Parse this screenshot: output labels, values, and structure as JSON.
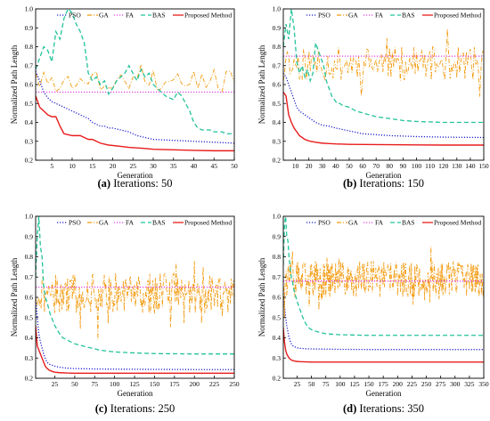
{
  "colors": {
    "PSO": "#1f1fd0",
    "GA": "#f39c12",
    "FA": "#e040e0",
    "BAS": "#22c39a",
    "Proposed Method": "#e81c1c"
  },
  "chart_data": [
    {
      "id": "a",
      "type": "line",
      "caption_letter": "(a)",
      "caption_text": " Iterations: 50",
      "xlabel": "Generation",
      "ylabel": "Normalized Path Length",
      "xlim": [
        1,
        50
      ],
      "ylim": [
        0.2,
        1.0
      ],
      "xticks": [
        5,
        10,
        15,
        20,
        25,
        30,
        35,
        40,
        45,
        50
      ],
      "yticks": [
        0.2,
        0.3,
        0.4,
        0.5,
        0.6,
        0.7,
        0.8,
        0.9,
        1.0
      ],
      "ytick_labels": [
        "0.2",
        "0.3",
        "0.4",
        "0.5",
        "0.6",
        "0.7",
        "0.8",
        "0.9",
        "1.0"
      ],
      "legend": [
        "PSO",
        "GA",
        "FA",
        "BAS",
        "Proposed Method"
      ],
      "series": [
        {
          "name": "PSO",
          "style": "dotted",
          "x": [
            1,
            2,
            3,
            4,
            5,
            6,
            7,
            8,
            9,
            10,
            11,
            12,
            13,
            14,
            15,
            16,
            17,
            18,
            19,
            20,
            22,
            24,
            26,
            28,
            30,
            35,
            40,
            45,
            50
          ],
          "y": [
            0.67,
            0.62,
            0.56,
            0.53,
            0.51,
            0.5,
            0.49,
            0.48,
            0.47,
            0.46,
            0.45,
            0.44,
            0.43,
            0.42,
            0.4,
            0.39,
            0.38,
            0.38,
            0.37,
            0.37,
            0.36,
            0.35,
            0.33,
            0.32,
            0.31,
            0.305,
            0.3,
            0.295,
            0.29
          ]
        },
        {
          "name": "GA",
          "style": "dashdot",
          "noise": {
            "base": 0.62,
            "amp": 0.06,
            "seed": 3,
            "start": 0.66
          }
        },
        {
          "name": "FA",
          "style": "dotted",
          "x": [
            1,
            50
          ],
          "y": [
            0.56,
            0.56
          ]
        },
        {
          "name": "BAS",
          "style": "dashed",
          "x": [
            1,
            2,
            3,
            4,
            5,
            6,
            7,
            8,
            9,
            10,
            11,
            12,
            13,
            14,
            15,
            16,
            17,
            18,
            19,
            20,
            21,
            22,
            23,
            24,
            25,
            26,
            27,
            28,
            29,
            30,
            31,
            32,
            33,
            34,
            35,
            36,
            37,
            38,
            39,
            40,
            41,
            42,
            43,
            44,
            45,
            46,
            47,
            48,
            49,
            50
          ],
          "y": [
            0.68,
            0.74,
            0.8,
            0.78,
            0.72,
            0.88,
            0.84,
            0.95,
            1.0,
            0.98,
            0.92,
            0.88,
            0.82,
            0.66,
            0.62,
            0.64,
            0.6,
            0.62,
            0.55,
            0.58,
            0.62,
            0.64,
            0.66,
            0.7,
            0.66,
            0.62,
            0.68,
            0.64,
            0.66,
            0.6,
            0.58,
            0.56,
            0.54,
            0.53,
            0.52,
            0.56,
            0.54,
            0.5,
            0.46,
            0.4,
            0.37,
            0.36,
            0.36,
            0.36,
            0.35,
            0.35,
            0.35,
            0.34,
            0.34,
            0.34
          ]
        },
        {
          "name": "Proposed Method",
          "style": "solid",
          "x": [
            1,
            2,
            3,
            4,
            5,
            6,
            7,
            8,
            9,
            10,
            11,
            12,
            13,
            14,
            15,
            16,
            17,
            18,
            19,
            20,
            22,
            24,
            26,
            28,
            30,
            35,
            40,
            45,
            50
          ],
          "y": [
            0.54,
            0.48,
            0.46,
            0.44,
            0.43,
            0.43,
            0.38,
            0.34,
            0.335,
            0.33,
            0.33,
            0.33,
            0.32,
            0.31,
            0.31,
            0.3,
            0.29,
            0.285,
            0.28,
            0.278,
            0.273,
            0.268,
            0.265,
            0.262,
            0.258,
            0.255,
            0.252,
            0.25,
            0.25
          ]
        }
      ]
    },
    {
      "id": "b",
      "type": "line",
      "caption_letter": "(b)",
      "caption_text": " Iterations: 150",
      "xlabel": "Generation",
      "ylabel": "Normalized Path Length",
      "xlim": [
        1,
        150
      ],
      "ylim": [
        0.2,
        1.0
      ],
      "xticks": [
        10,
        20,
        30,
        40,
        50,
        60,
        70,
        80,
        90,
        100,
        110,
        120,
        130,
        140,
        150
      ],
      "yticks": [
        0.2,
        0.3,
        0.4,
        0.5,
        0.6,
        0.7,
        0.8,
        0.9,
        1.0
      ],
      "ytick_labels": [
        "0.2",
        "0.3",
        "0.4",
        "0.5",
        "0.6",
        "0.7",
        "0.8",
        "0.9",
        "1.0"
      ],
      "legend": [
        "PSO",
        "GA",
        "FA",
        "BAS",
        "Proposed Method"
      ],
      "series": [
        {
          "name": "PSO",
          "style": "dotted",
          "x": [
            1,
            3,
            5,
            7,
            9,
            11,
            13,
            15,
            17,
            19,
            21,
            25,
            30,
            35,
            40,
            50,
            60,
            70,
            80,
            100,
            120,
            150
          ],
          "y": [
            0.66,
            0.64,
            0.6,
            0.56,
            0.52,
            0.48,
            0.46,
            0.45,
            0.44,
            0.43,
            0.42,
            0.4,
            0.385,
            0.38,
            0.37,
            0.355,
            0.34,
            0.335,
            0.33,
            0.325,
            0.322,
            0.32
          ]
        },
        {
          "name": "GA",
          "style": "dashdot",
          "noise": {
            "base": 0.71,
            "amp": 0.09,
            "seed": 11,
            "start": 0.62
          }
        },
        {
          "name": "FA",
          "style": "dotted",
          "x": [
            1,
            150
          ],
          "y": [
            0.75,
            0.75
          ]
        },
        {
          "name": "BAS",
          "style": "dashed",
          "x": [
            1,
            3,
            5,
            7,
            9,
            11,
            13,
            15,
            17,
            19,
            21,
            23,
            25,
            27,
            29,
            31,
            33,
            35,
            37,
            39,
            41,
            43,
            45,
            50,
            55,
            60,
            70,
            80,
            90,
            100,
            120,
            150
          ],
          "y": [
            0.8,
            0.92,
            0.84,
            1.0,
            0.9,
            0.72,
            0.66,
            0.7,
            0.64,
            0.68,
            0.62,
            0.66,
            0.82,
            0.78,
            0.74,
            0.7,
            0.62,
            0.58,
            0.54,
            0.52,
            0.5,
            0.5,
            0.49,
            0.48,
            0.46,
            0.45,
            0.43,
            0.42,
            0.41,
            0.405,
            0.4,
            0.4
          ]
        },
        {
          "name": "Proposed Method",
          "style": "solid",
          "x": [
            1,
            3,
            5,
            7,
            9,
            11,
            13,
            15,
            17,
            19,
            21,
            25,
            30,
            35,
            40,
            50,
            60,
            80,
            100,
            120,
            150
          ],
          "y": [
            0.56,
            0.54,
            0.44,
            0.4,
            0.37,
            0.35,
            0.33,
            0.32,
            0.31,
            0.305,
            0.3,
            0.295,
            0.29,
            0.288,
            0.286,
            0.284,
            0.283,
            0.282,
            0.281,
            0.28,
            0.28
          ]
        }
      ]
    },
    {
      "id": "c",
      "type": "line",
      "caption_letter": "(c)",
      "caption_text": " Iterations: 250",
      "xlabel": "Generation",
      "ylabel": "Normalized Path Length",
      "xlim": [
        1,
        250
      ],
      "ylim": [
        0.2,
        1.0
      ],
      "xticks": [
        25,
        50,
        75,
        100,
        125,
        150,
        175,
        200,
        225,
        250
      ],
      "yticks": [
        0.2,
        0.3,
        0.4,
        0.5,
        0.6,
        0.7,
        0.8,
        0.9,
        1.0
      ],
      "ytick_labels": [
        "0.2",
        "0.3",
        "0.4",
        "0.5",
        "0.6",
        "0.7",
        "0.8",
        "0.9",
        "1.0"
      ],
      "legend": [
        "PSO",
        "GA",
        "FA",
        "BAS",
        "Proposed Method"
      ],
      "series": [
        {
          "name": "PSO",
          "style": "dotted",
          "x": [
            1,
            3,
            5,
            7,
            9,
            11,
            13,
            15,
            18,
            21,
            25,
            30,
            40,
            50,
            75,
            100,
            150,
            200,
            250
          ],
          "y": [
            0.6,
            0.5,
            0.42,
            0.38,
            0.35,
            0.32,
            0.3,
            0.28,
            0.27,
            0.265,
            0.26,
            0.255,
            0.25,
            0.248,
            0.246,
            0.245,
            0.244,
            0.243,
            0.243
          ]
        },
        {
          "name": "GA",
          "style": "dashdot",
          "noise": {
            "base": 0.62,
            "amp": 0.1,
            "seed": 21,
            "start": 0.6
          }
        },
        {
          "name": "FA",
          "style": "dotted",
          "x": [
            1,
            250
          ],
          "y": [
            0.65,
            0.65
          ]
        },
        {
          "name": "BAS",
          "style": "dashed",
          "x": [
            1,
            3,
            5,
            7,
            9,
            11,
            13,
            15,
            17,
            19,
            21,
            23,
            25,
            28,
            31,
            35,
            40,
            45,
            50,
            60,
            70,
            80,
            100,
            125,
            150,
            200,
            250
          ],
          "y": [
            0.7,
            0.9,
            1.0,
            0.85,
            0.8,
            0.66,
            0.6,
            0.58,
            0.55,
            0.52,
            0.5,
            0.48,
            0.46,
            0.44,
            0.42,
            0.4,
            0.39,
            0.38,
            0.37,
            0.36,
            0.35,
            0.34,
            0.33,
            0.325,
            0.322,
            0.32,
            0.32
          ]
        },
        {
          "name": "Proposed Method",
          "style": "solid",
          "x": [
            1,
            3,
            5,
            7,
            9,
            11,
            13,
            15,
            18,
            21,
            25,
            30,
            40,
            50,
            75,
            100,
            150,
            200,
            250
          ],
          "y": [
            0.46,
            0.36,
            0.34,
            0.32,
            0.3,
            0.28,
            0.26,
            0.25,
            0.24,
            0.235,
            0.23,
            0.228,
            0.226,
            0.225,
            0.225,
            0.225,
            0.225,
            0.225,
            0.225
          ]
        }
      ]
    },
    {
      "id": "d",
      "type": "line",
      "caption_letter": "(d)",
      "caption_text": " Iterations: 350",
      "xlabel": "Generation",
      "ylabel": "Normalized Path Length",
      "xlim": [
        1,
        350
      ],
      "ylim": [
        0.2,
        1.0
      ],
      "xticks": [
        25,
        50,
        75,
        100,
        125,
        150,
        175,
        200,
        225,
        250,
        275,
        300,
        325,
        350
      ],
      "yticks": [
        0.2,
        0.3,
        0.4,
        0.5,
        0.6,
        0.7,
        0.8,
        0.9,
        1.0
      ],
      "ytick_labels": [
        "0.2",
        "0.3",
        "0.4",
        "0.5",
        "0.6",
        "0.7",
        "0.8",
        "0.9",
        "1.0"
      ],
      "legend": [
        "PSO",
        "GA",
        "FA",
        "BAS",
        "Proposed Method"
      ],
      "series": [
        {
          "name": "PSO",
          "style": "dotted",
          "x": [
            1,
            3,
            5,
            7,
            9,
            11,
            13,
            15,
            18,
            21,
            25,
            30,
            40,
            50,
            75,
            100,
            150,
            200,
            250,
            300,
            350
          ],
          "y": [
            0.62,
            0.56,
            0.5,
            0.46,
            0.43,
            0.4,
            0.385,
            0.37,
            0.36,
            0.355,
            0.35,
            0.348,
            0.346,
            0.345,
            0.344,
            0.343,
            0.342,
            0.342,
            0.342,
            0.342,
            0.342
          ]
        },
        {
          "name": "GA",
          "style": "dashdot",
          "noise": {
            "base": 0.69,
            "amp": 0.09,
            "seed": 37,
            "start": 0.64
          }
        },
        {
          "name": "FA",
          "style": "dotted",
          "x": [
            1,
            350
          ],
          "y": [
            0.68,
            0.68
          ]
        },
        {
          "name": "BAS",
          "style": "dashed",
          "x": [
            1,
            3,
            5,
            7,
            9,
            11,
            13,
            15,
            17,
            19,
            21,
            25,
            30,
            35,
            40,
            45,
            50,
            60,
            75,
            100,
            150,
            200,
            250,
            300,
            350
          ],
          "y": [
            0.76,
            0.96,
            1.0,
            0.9,
            0.88,
            0.8,
            0.74,
            0.7,
            0.68,
            0.64,
            0.62,
            0.58,
            0.54,
            0.5,
            0.47,
            0.45,
            0.44,
            0.43,
            0.42,
            0.415,
            0.412,
            0.412,
            0.412,
            0.412,
            0.412
          ]
        },
        {
          "name": "Proposed Method",
          "style": "solid",
          "x": [
            1,
            3,
            5,
            7,
            9,
            11,
            13,
            15,
            18,
            21,
            25,
            30,
            40,
            50,
            75,
            100,
            150,
            200,
            250,
            300,
            350
          ],
          "y": [
            0.45,
            0.38,
            0.34,
            0.32,
            0.31,
            0.3,
            0.295,
            0.29,
            0.287,
            0.285,
            0.283,
            0.282,
            0.281,
            0.28,
            0.28,
            0.28,
            0.28,
            0.28,
            0.28,
            0.28,
            0.28
          ]
        }
      ]
    }
  ]
}
